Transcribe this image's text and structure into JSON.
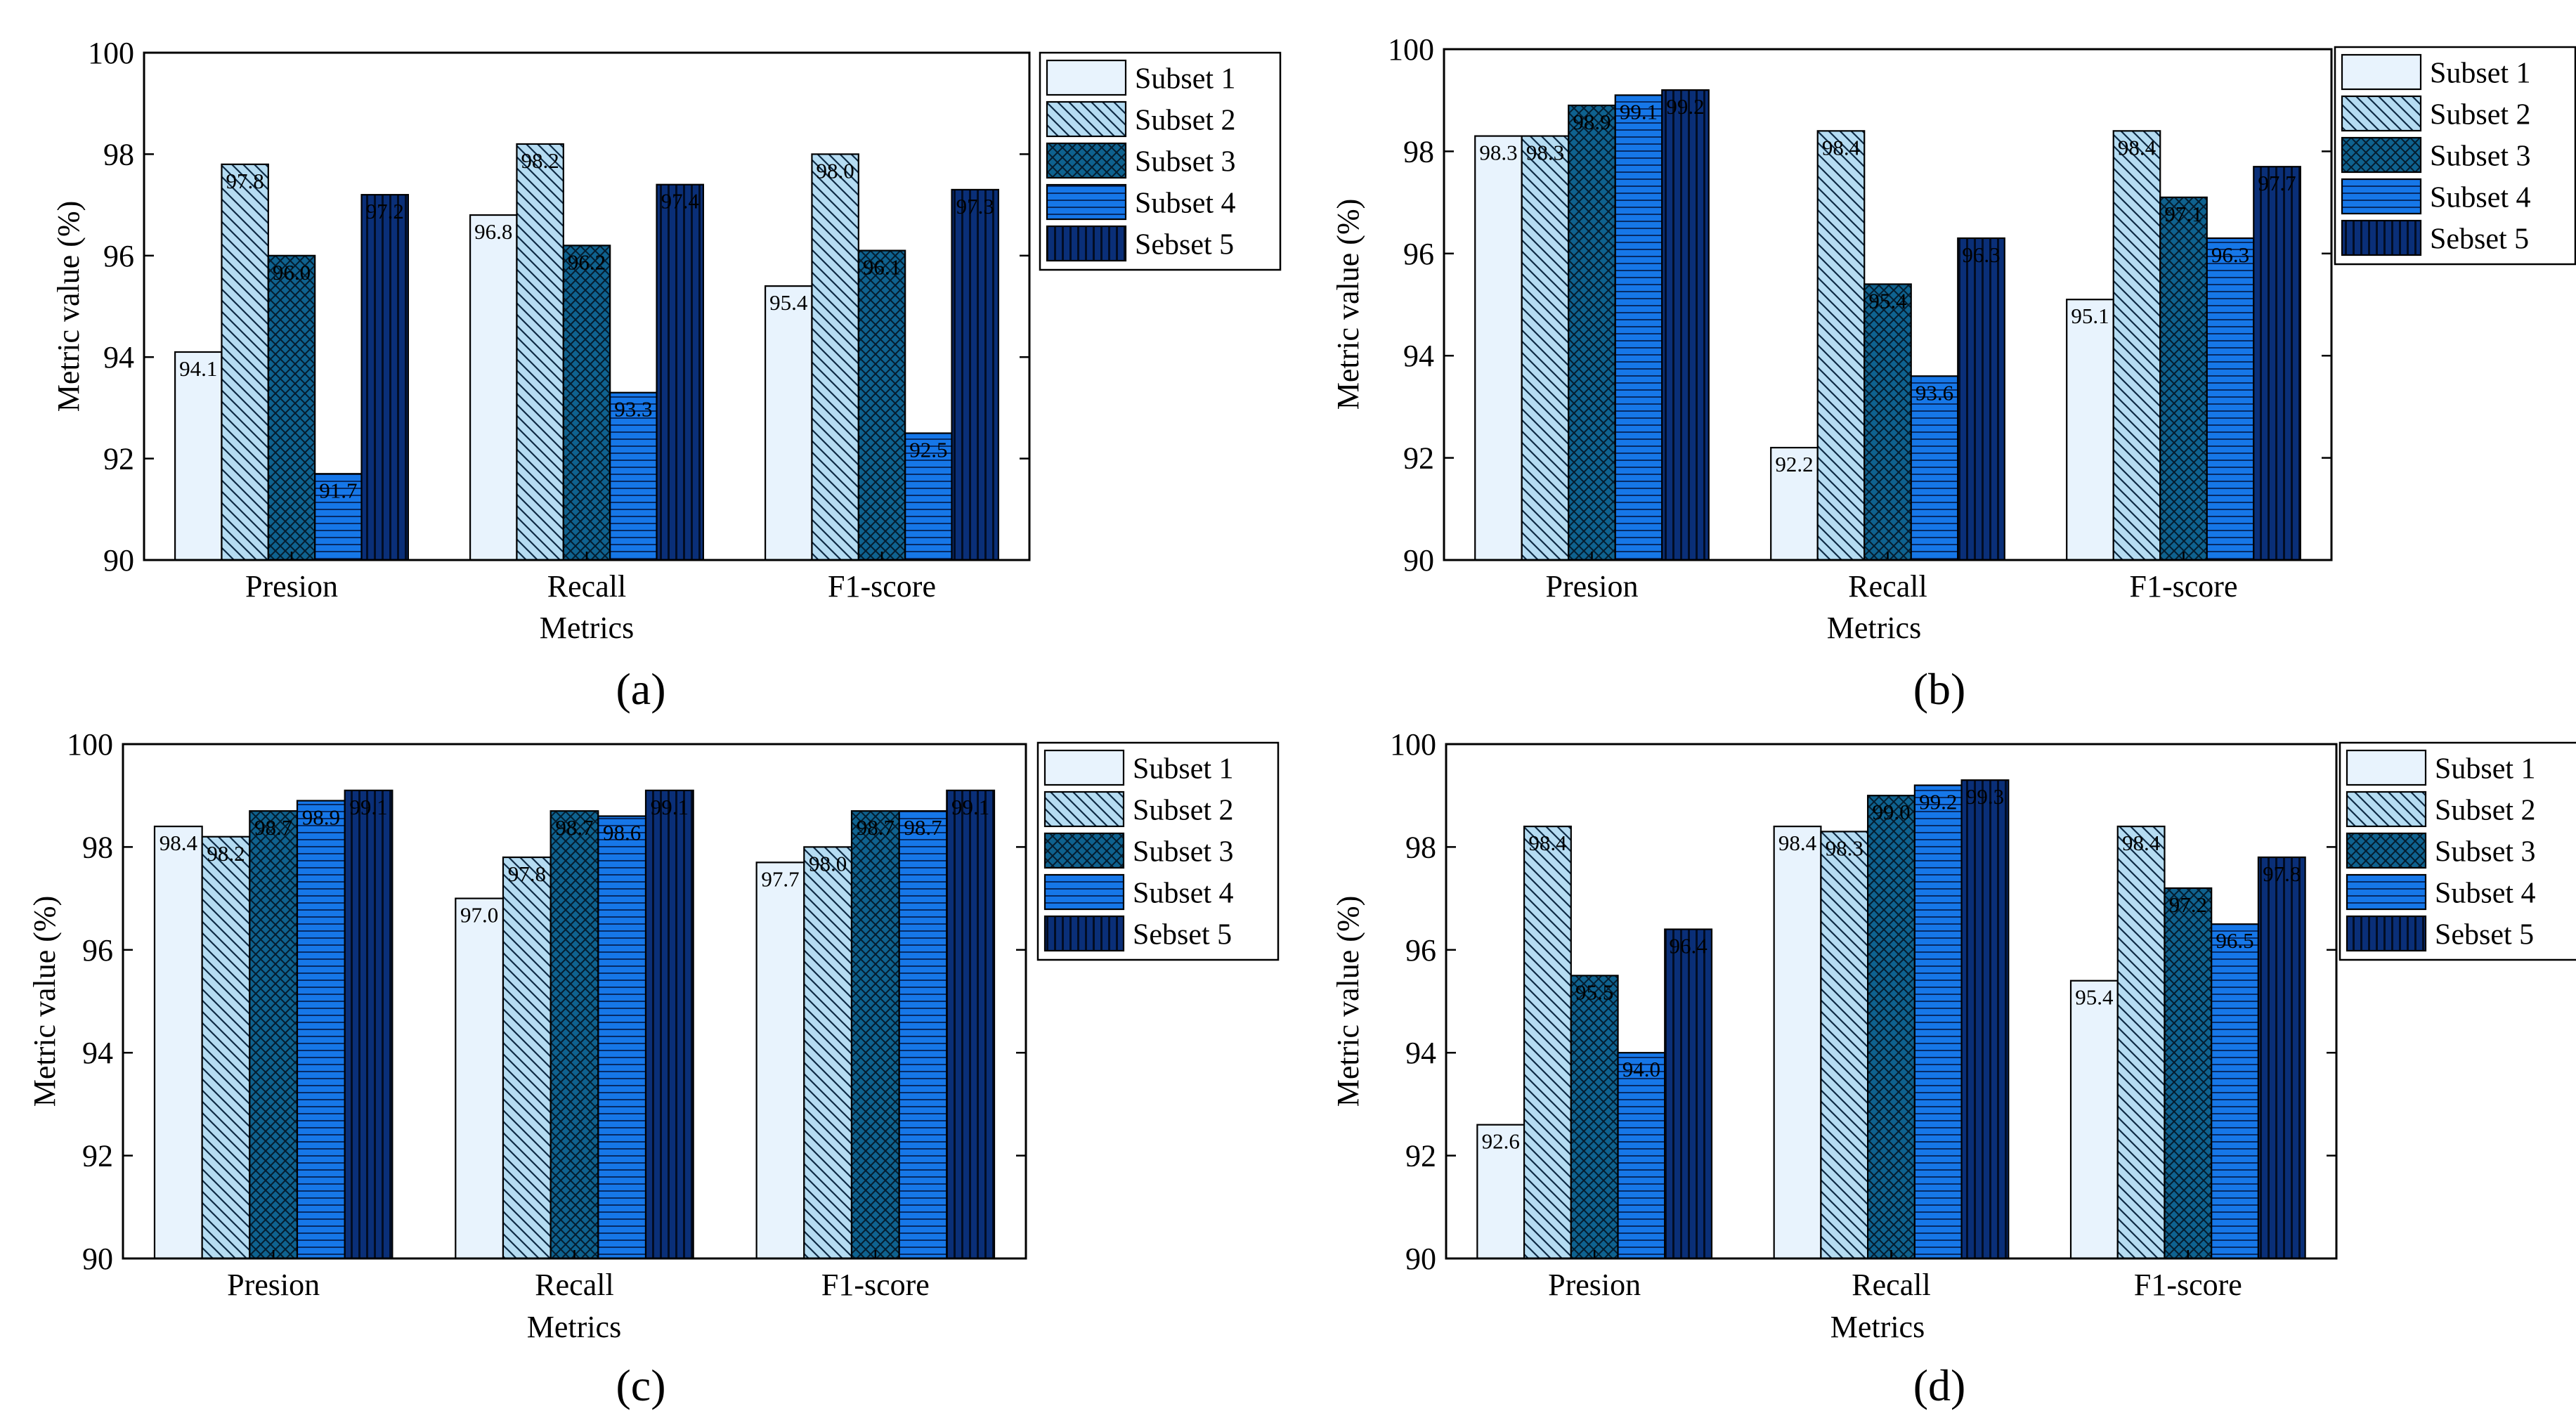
{
  "figure": {
    "legend_labels": [
      "Subset 1",
      "Subset 2",
      "Subset 3",
      "Subset 4",
      "Sebset 5"
    ],
    "series_colors": [
      "#e8f3fd",
      "#b5dcf2",
      "#0f628f",
      "#1677e8",
      "#0a2f78"
    ]
  },
  "chart_data": [
    {
      "type": "bar",
      "panel_label": "(a)",
      "categories": [
        "Presion",
        "Recall",
        "F1-score"
      ],
      "xlabel": "Metrics",
      "ylabel": "Metric value (%)",
      "ylim": [
        90,
        100
      ],
      "yticks": [
        90,
        92,
        94,
        96,
        98,
        100
      ],
      "legend": "top-right, outside",
      "series": [
        {
          "name": "Subset 1",
          "values": [
            94.1,
            96.8,
            95.4
          ],
          "labels": [
            "94.1",
            "96.8",
            "95.4"
          ]
        },
        {
          "name": "Subset 2",
          "values": [
            97.8,
            98.2,
            98.0
          ],
          "labels": [
            "97.8",
            "98.2",
            "98.0"
          ]
        },
        {
          "name": "Subset 3",
          "values": [
            96.0,
            96.2,
            96.1
          ],
          "labels": [
            "96.0",
            "96.2",
            "96.1"
          ]
        },
        {
          "name": "Subset 4",
          "values": [
            91.7,
            93.3,
            92.5
          ],
          "labels": [
            "91.7",
            "93.3",
            "92.5"
          ]
        },
        {
          "name": "Sebset 5",
          "values": [
            97.2,
            97.4,
            97.3
          ],
          "labels": [
            "97.2",
            "97.4",
            "97.3"
          ]
        }
      ]
    },
    {
      "type": "bar",
      "panel_label": "(b)",
      "categories": [
        "Presion",
        "Recall",
        "F1-score"
      ],
      "xlabel": "Metrics",
      "ylabel": "Metric value (%)",
      "ylim": [
        90,
        100
      ],
      "yticks": [
        90,
        92,
        94,
        96,
        98,
        100
      ],
      "legend": "top-right, outside",
      "series": [
        {
          "name": "Subset 1",
          "values": [
            98.3,
            92.2,
            95.1
          ],
          "labels": [
            "98.3",
            "92.2",
            "95.1"
          ]
        },
        {
          "name": "Subset 2",
          "values": [
            98.3,
            98.4,
            98.4
          ],
          "labels": [
            "98.3",
            "98.4",
            "98.4"
          ]
        },
        {
          "name": "Subset 3",
          "values": [
            98.9,
            95.4,
            97.1
          ],
          "labels": [
            "98.9",
            "95.4",
            "97.1"
          ]
        },
        {
          "name": "Subset 4",
          "values": [
            99.1,
            93.6,
            96.3
          ],
          "labels": [
            "99.1",
            "93.6",
            "96.3"
          ]
        },
        {
          "name": "Sebset 5",
          "values": [
            99.2,
            96.3,
            97.7
          ],
          "labels": [
            "99.2",
            "96.3",
            "97.7"
          ]
        }
      ]
    },
    {
      "type": "bar",
      "panel_label": "(c)",
      "categories": [
        "Presion",
        "Recall",
        "F1-score"
      ],
      "xlabel": "Metrics",
      "ylabel": "Metric value (%)",
      "ylim": [
        90,
        100
      ],
      "yticks": [
        90,
        92,
        94,
        96,
        98,
        100
      ],
      "legend": "top-right, outside",
      "series": [
        {
          "name": "Subset 1",
          "values": [
            98.4,
            97.0,
            97.7
          ],
          "labels": [
            "98.4",
            "97.0",
            "97.7"
          ]
        },
        {
          "name": "Subset 2",
          "values": [
            98.2,
            97.8,
            98.0
          ],
          "labels": [
            "98.2",
            "97.8",
            "98.0"
          ]
        },
        {
          "name": "Subset 3",
          "values": [
            98.7,
            98.7,
            98.7
          ],
          "labels": [
            "98.7",
            "98.7",
            "98.7"
          ]
        },
        {
          "name": "Subset 4",
          "values": [
            98.9,
            98.6,
            98.7
          ],
          "labels": [
            "98.9",
            "98.6",
            "98.7"
          ]
        },
        {
          "name": "Sebset 5",
          "values": [
            99.1,
            99.1,
            99.1
          ],
          "labels": [
            "99.1",
            "99.1",
            "99.1"
          ]
        }
      ]
    },
    {
      "type": "bar",
      "panel_label": "(d)",
      "categories": [
        "Presion",
        "Recall",
        "F1-score"
      ],
      "xlabel": "Metrics",
      "ylabel": "Metric value (%)",
      "ylim": [
        90,
        100
      ],
      "yticks": [
        90,
        92,
        94,
        96,
        98,
        100
      ],
      "legend": "top-right, outside",
      "series": [
        {
          "name": "Subset 1",
          "values": [
            92.6,
            98.4,
            95.4
          ],
          "labels": [
            "92.6",
            "98.4",
            "95.4"
          ]
        },
        {
          "name": "Subset 2",
          "values": [
            98.4,
            98.3,
            98.4
          ],
          "labels": [
            "98.4",
            "98.3",
            "98.4"
          ]
        },
        {
          "name": "Subset 3",
          "values": [
            95.5,
            99.0,
            97.2
          ],
          "labels": [
            "95.5",
            "99.0",
            "97.2"
          ]
        },
        {
          "name": "Subset 4",
          "values": [
            94.0,
            99.2,
            96.5
          ],
          "labels": [
            "94.0",
            "99.2",
            "96.5"
          ]
        },
        {
          "name": "Sebset 5",
          "values": [
            96.4,
            99.3,
            97.8
          ],
          "labels": [
            "96.4",
            "99.3",
            "97.8"
          ]
        }
      ]
    }
  ]
}
